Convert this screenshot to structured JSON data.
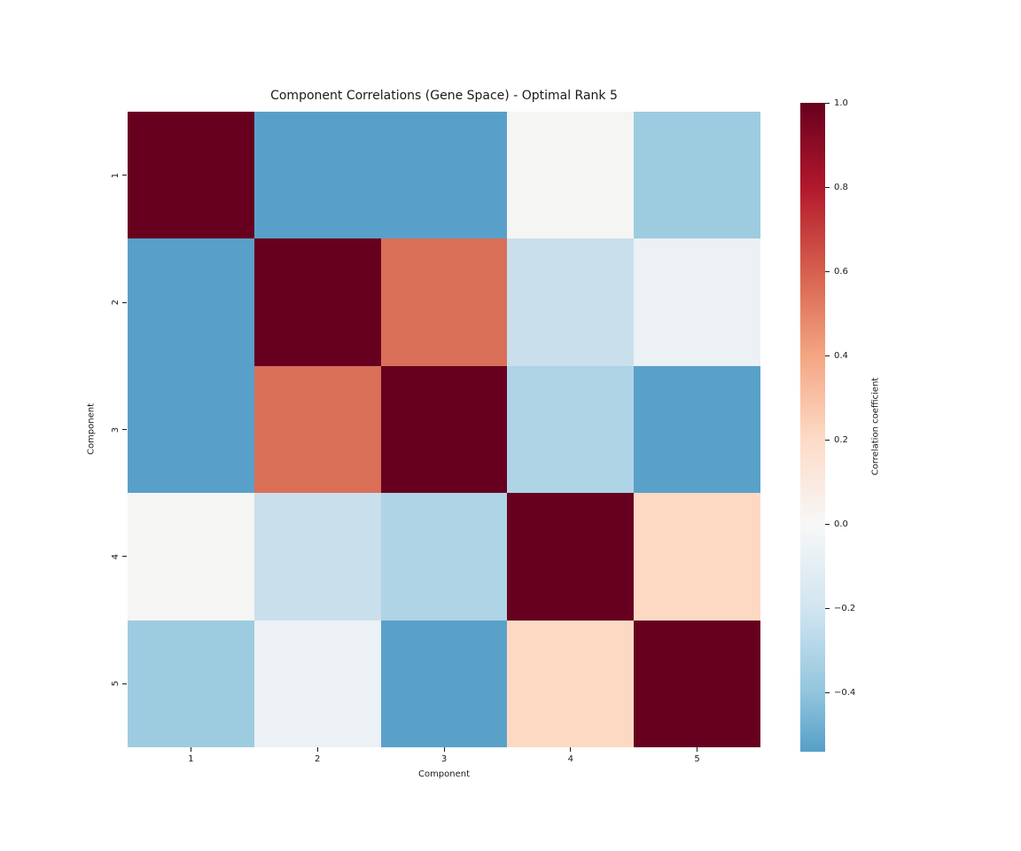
{
  "figure": {
    "background": "#ffffff",
    "text_color": "#1a1a1a"
  },
  "chart_data": {
    "type": "heatmap",
    "title": "Component Correlations (Gene Space) - Optimal Rank 5",
    "xlabel": "Component",
    "ylabel": "Component",
    "x_ticklabels": [
      "1",
      "2",
      "3",
      "4",
      "5"
    ],
    "y_ticklabels": [
      "1",
      "2",
      "3",
      "4",
      "5"
    ],
    "colormap": "RdBu_r diverging, centered at 0",
    "grid": "off",
    "matrix": [
      [
        1.0,
        -0.53,
        -0.53,
        0.0,
        -0.35
      ],
      [
        -0.53,
        1.0,
        0.56,
        -0.2,
        -0.07
      ],
      [
        -0.53,
        0.56,
        1.0,
        -0.28,
        -0.52
      ],
      [
        0.0,
        -0.2,
        -0.28,
        1.0,
        0.2
      ],
      [
        -0.35,
        -0.07,
        -0.52,
        0.2,
        1.0
      ]
    ],
    "cell_colors": [
      [
        "#67001f",
        "#58a0c9",
        "#58a0c9",
        "#f5f5f4",
        "#9dcce1"
      ],
      [
        "#58a0c9",
        "#67001f",
        "#da6f58",
        "#c9dfec",
        "#ebf1f5"
      ],
      [
        "#58a0c9",
        "#da6f58",
        "#67001f",
        "#aed4e6",
        "#5aa1c9"
      ],
      [
        "#f5f5f4",
        "#c9dfec",
        "#aed4e6",
        "#67001f",
        "#fdd9c4"
      ],
      [
        "#9dcce1",
        "#ebf1f5",
        "#5aa1c9",
        "#fdd9c4",
        "#67001f"
      ]
    ],
    "colorbar": {
      "label": "Correlation coefficient",
      "tick_values": [
        1.0,
        0.8,
        0.6,
        0.4,
        0.2,
        0.0,
        -0.2,
        -0.4
      ],
      "tick_labels": [
        "1.0",
        "0.8",
        "0.6",
        "0.4",
        "0.2",
        "0.0",
        "−0.2",
        "−0.4"
      ],
      "vmax": 1.0,
      "vmin": -0.54,
      "gradient_stops": [
        {
          "color": "#67001f",
          "pos": 0
        },
        {
          "color": "#b2182b",
          "pos": 13
        },
        {
          "color": "#d6604d",
          "pos": 26
        },
        {
          "color": "#f4a582",
          "pos": 38.9
        },
        {
          "color": "#fddbc7",
          "pos": 51.9
        },
        {
          "color": "#f7f7f7",
          "pos": 64.9
        },
        {
          "color": "#d1e5f0",
          "pos": 77.9
        },
        {
          "color": "#92c5de",
          "pos": 90.8
        },
        {
          "color": "#569fc8",
          "pos": 100
        }
      ]
    }
  }
}
